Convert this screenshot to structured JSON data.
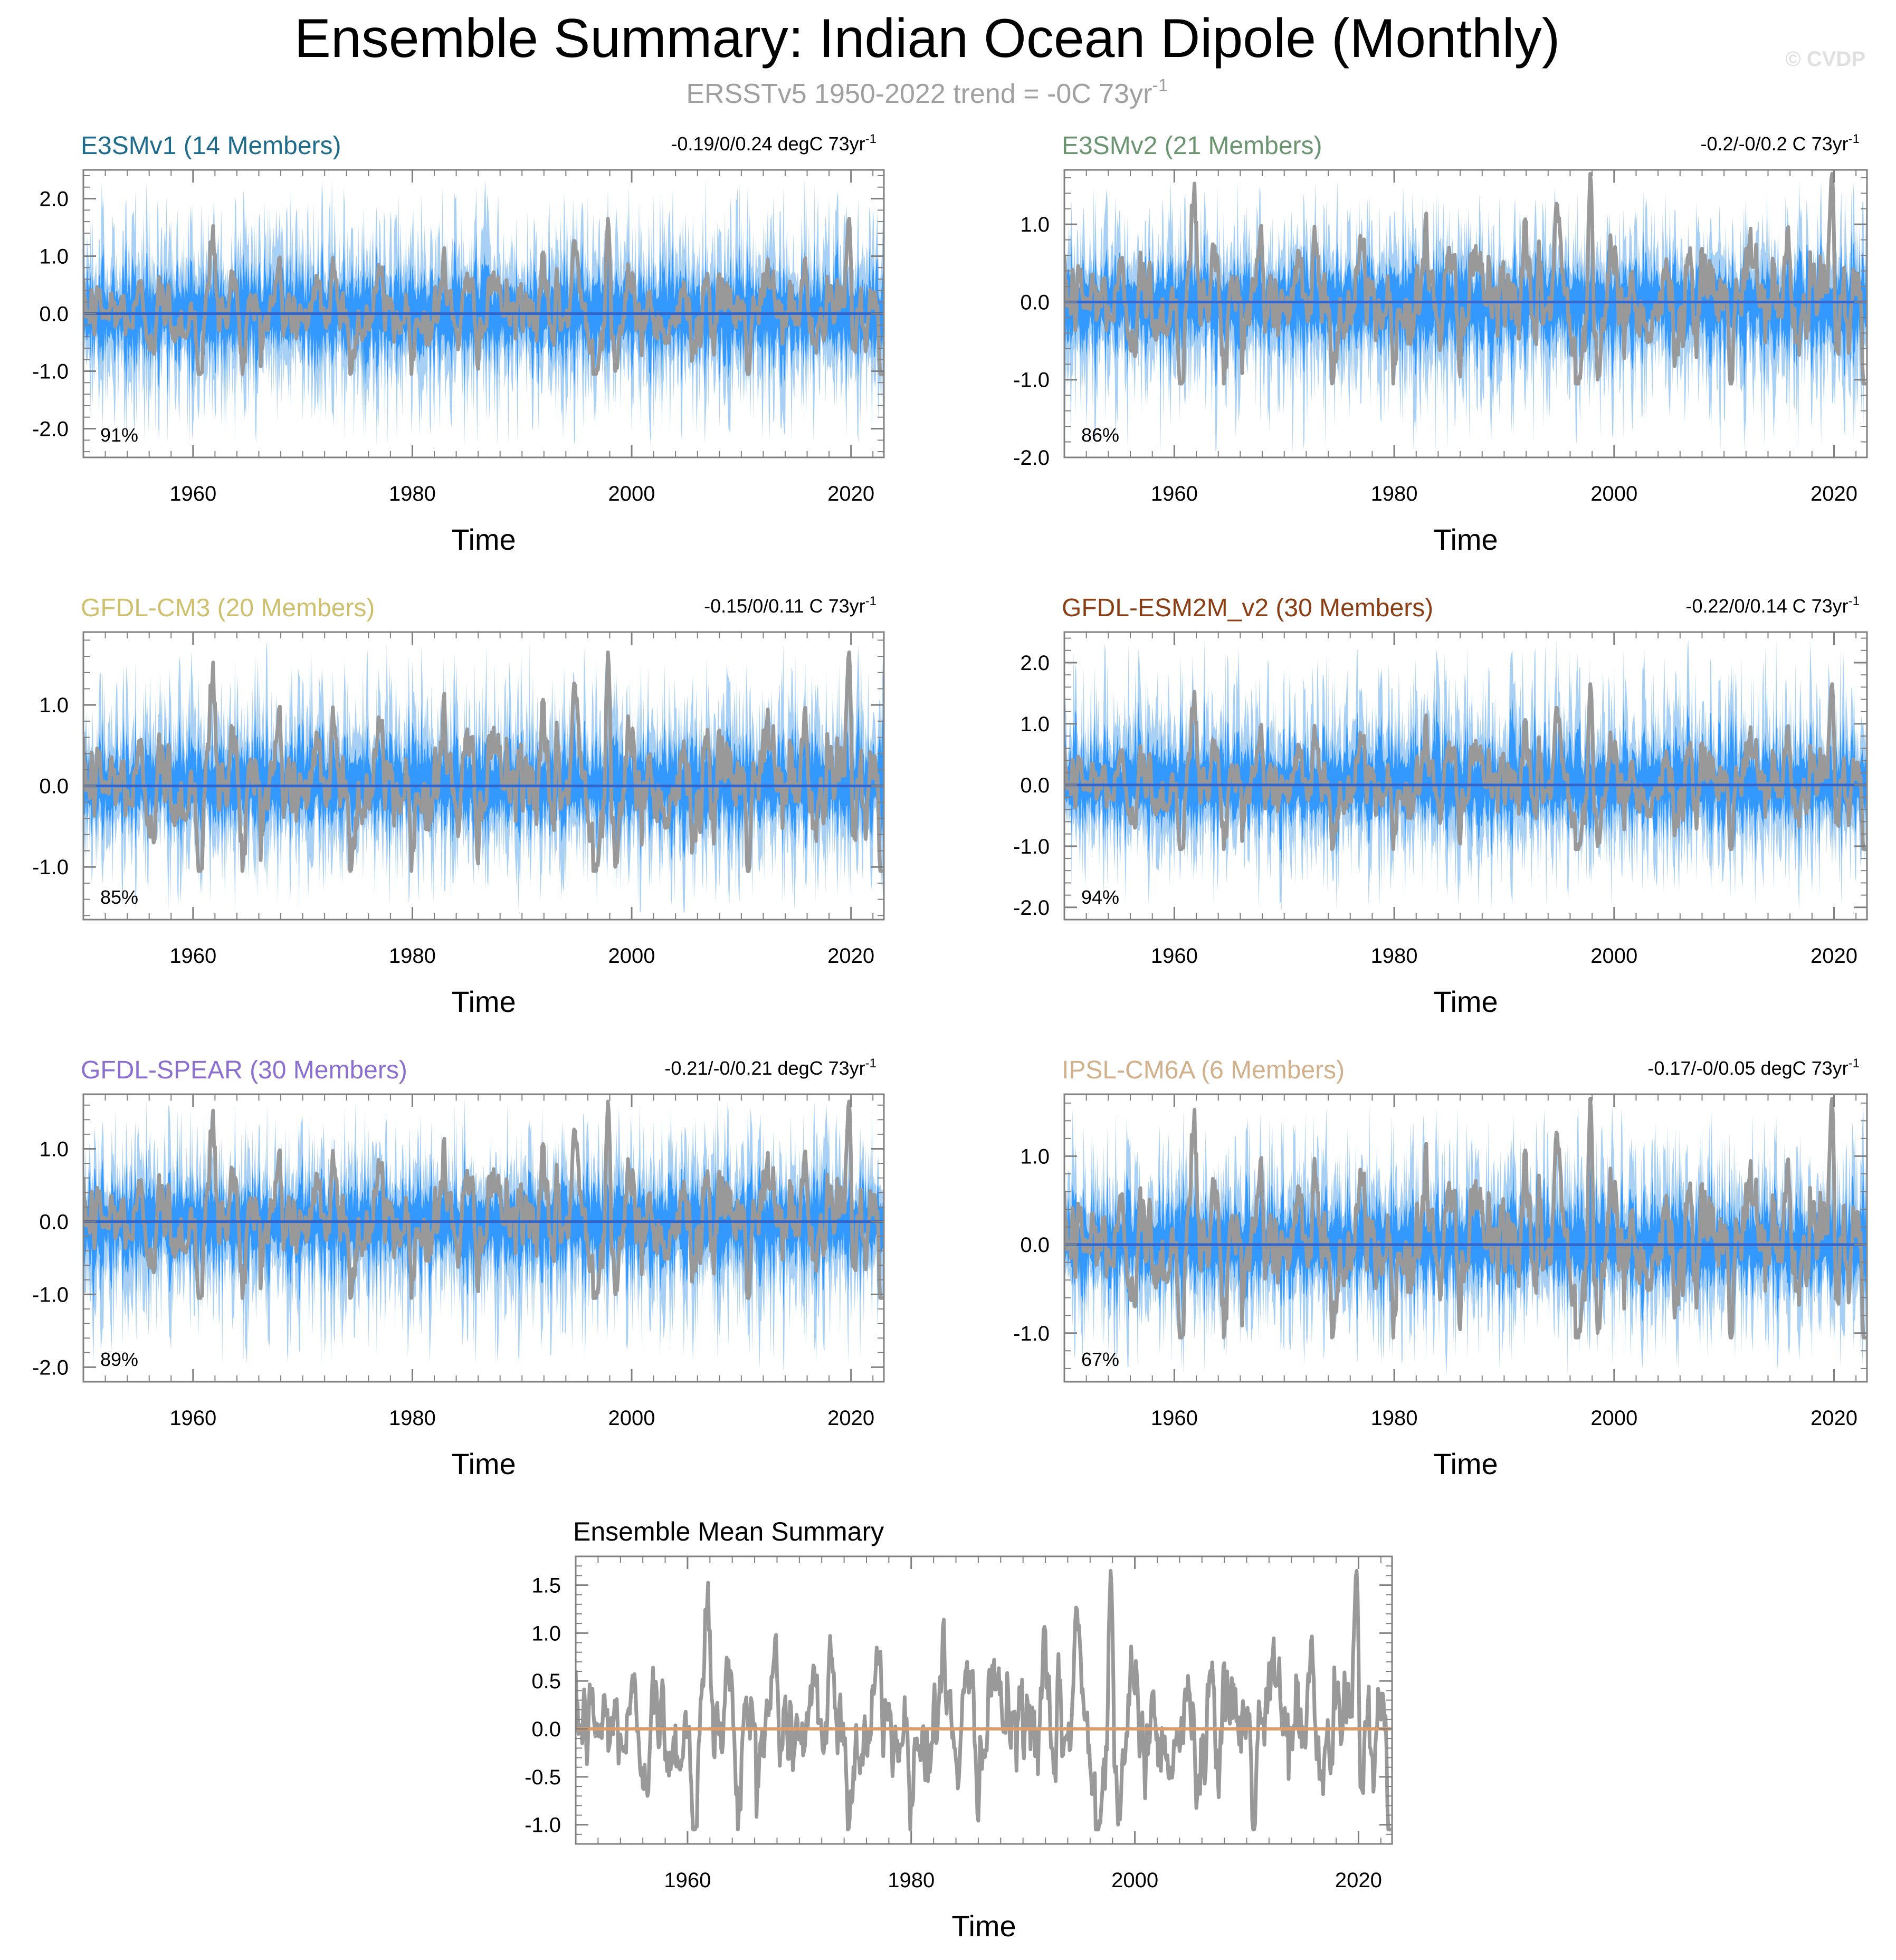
{
  "page": {
    "title": "Ensemble Summary: Indian Ocean Dipole (Monthly)",
    "subtitle": "ERSSTv5 1950-2022 trend = -0C 73yr",
    "subtitle_sup": "-1",
    "watermark": "© CVDP"
  },
  "colors": {
    "observation_line": "#999999",
    "ensemble_range_light": "#a8d0f5",
    "ensemble_range_dark": "#3399ff",
    "ensemble_mean_line": "#3366cc",
    "mean_summary_zero_line": "#e09c66",
    "axis": "#808080"
  },
  "chart_data": [
    {
      "type": "line",
      "title": "E3SMv1 (14 Members)",
      "title_color": "#1f6b8c",
      "trend_label": "-0.19/0/0.24 degC 73yr",
      "trend_sup": "-1",
      "pct_label": "91%",
      "xlabel": "Time",
      "ylabel": "",
      "xlim": [
        1950,
        2023
      ],
      "ylim": [
        -2.5,
        2.5
      ],
      "x_ticks": [
        1960,
        1980,
        2000,
        2020
      ],
      "y_ticks": [
        2.0,
        1.0,
        0.0,
        -1.0,
        -2.0
      ],
      "y_tick_labels": [
        "2.0",
        "1.0",
        "0.0",
        "-1.0",
        "-2.0"
      ],
      "series": [
        {
          "values_desc": "member spread",
          "range": [
            -2.4,
            2.4
          ]
        }
      ]
    },
    {
      "type": "line",
      "title": "E3SMv2 (21 Members)",
      "title_color": "#6b9470",
      "trend_label": "-0.2/-0/0.2 C 73yr",
      "trend_sup": "-1",
      "pct_label": "86%",
      "xlabel": "Time",
      "ylabel": "",
      "xlim": [
        1950,
        2023
      ],
      "ylim": [
        -2.0,
        1.7
      ],
      "x_ticks": [
        1960,
        1980,
        2000,
        2020
      ],
      "y_ticks": [
        1.0,
        0.0,
        -1.0,
        -2.0
      ],
      "y_tick_labels": [
        "1.0",
        "0.0",
        "-1.0",
        "-2.0"
      ],
      "series": [
        {
          "values_desc": "member spread",
          "range": [
            -2.0,
            1.6
          ]
        }
      ]
    },
    {
      "type": "line",
      "title": "GFDL-CM3 (20 Members)",
      "title_color": "#cfc06e",
      "trend_label": "-0.15/0/0.11 C 73yr",
      "trend_sup": "-1",
      "pct_label": "85%",
      "xlabel": "Time",
      "ylabel": "",
      "xlim": [
        1950,
        2023
      ],
      "ylim": [
        -1.65,
        1.9
      ],
      "x_ticks": [
        1960,
        1980,
        2000,
        2020
      ],
      "y_ticks": [
        1.0,
        0.0,
        -1.0
      ],
      "y_tick_labels": [
        "1.0",
        "0.0",
        "-1.0"
      ],
      "series": [
        {
          "values_desc": "member spread",
          "range": [
            -1.6,
            1.8
          ]
        }
      ]
    },
    {
      "type": "line",
      "title": "GFDL-ESM2M_v2 (30 Members)",
      "title_color": "#8b3e13",
      "trend_label": "-0.22/0/0.14 C 73yr",
      "trend_sup": "-1",
      "pct_label": "94%",
      "xlabel": "Time",
      "ylabel": "",
      "xlim": [
        1950,
        2023
      ],
      "ylim": [
        -2.2,
        2.5
      ],
      "x_ticks": [
        1960,
        1980,
        2000,
        2020
      ],
      "y_ticks": [
        2.0,
        1.0,
        0.0,
        -1.0,
        -2.0
      ],
      "y_tick_labels": [
        "2.0",
        "1.0",
        "0.0",
        "-1.0",
        "-2.0"
      ],
      "series": [
        {
          "values_desc": "member spread",
          "range": [
            -2.1,
            2.4
          ]
        }
      ]
    },
    {
      "type": "line",
      "title": "GFDL-SPEAR (30 Members)",
      "title_color": "#8a6fd1",
      "trend_label": "-0.21/-0/0.21 degC 73yr",
      "trend_sup": "-1",
      "pct_label": "89%",
      "xlabel": "Time",
      "ylabel": "",
      "xlim": [
        1950,
        2023
      ],
      "ylim": [
        -2.2,
        1.75
      ],
      "x_ticks": [
        1960,
        1980,
        2000,
        2020
      ],
      "y_ticks": [
        1.0,
        0.0,
        -1.0,
        -2.0
      ],
      "y_tick_labels": [
        "1.0",
        "0.0",
        "-1.0",
        "-2.0"
      ],
      "series": [
        {
          "values_desc": "member spread",
          "range": [
            -2.1,
            1.7
          ]
        }
      ]
    },
    {
      "type": "line",
      "title": "IPSL-CM6A (6 Members)",
      "title_color": "#d1b08b",
      "trend_label": "-0.17/-0/0.05 degC 73yr",
      "trend_sup": "-1",
      "pct_label": "67%",
      "xlabel": "Time",
      "ylabel": "",
      "xlim": [
        1950,
        2023
      ],
      "ylim": [
        -1.55,
        1.7
      ],
      "x_ticks": [
        1960,
        1980,
        2000,
        2020
      ],
      "y_ticks": [
        1.0,
        0.0,
        -1.0
      ],
      "y_tick_labels": [
        "1.0",
        "0.0",
        "-1.0"
      ],
      "series": [
        {
          "values_desc": "member spread",
          "range": [
            -1.5,
            1.6
          ]
        }
      ]
    },
    {
      "type": "line",
      "title": "Ensemble Mean Summary",
      "title_color": "#000000",
      "trend_label": "",
      "trend_sup": "",
      "pct_label": "",
      "xlabel": "Time",
      "ylabel": "",
      "xlim": [
        1950,
        2023
      ],
      "ylim": [
        -1.2,
        1.8
      ],
      "x_ticks": [
        1960,
        1980,
        2000,
        2020
      ],
      "y_ticks": [
        1.5,
        1.0,
        0.5,
        0.0,
        -0.5,
        -1.0
      ],
      "y_tick_labels": [
        "1.5",
        "1.0",
        "0.5",
        "0.0",
        "-0.5",
        "-1.0"
      ],
      "series": [
        {
          "values_desc": "observed IOD index",
          "range": [
            -1.05,
            1.65
          ]
        }
      ]
    }
  ]
}
